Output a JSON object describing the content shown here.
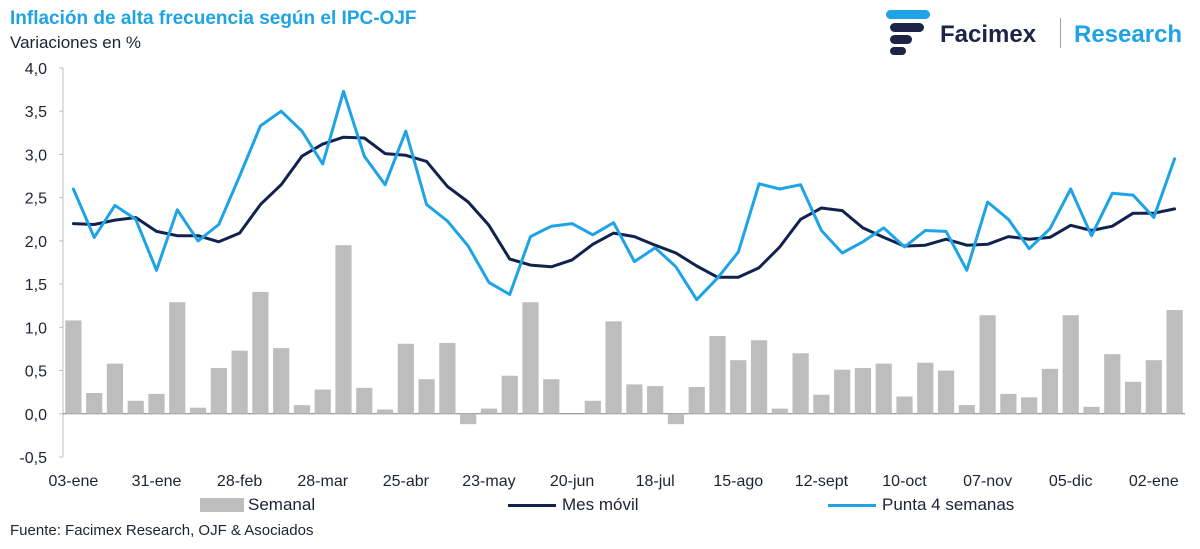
{
  "header": {
    "title": "Inflación de alta frecuencia según el IPC-OJF",
    "subtitle": "Variaciones en %"
  },
  "logo": {
    "name": "Facimex",
    "division": "Research"
  },
  "footer": {
    "source": "Fuente: Facimex Research, OJF & Asociados"
  },
  "colors": {
    "bar": "#bdbdbd",
    "mes_movil": "#12224f",
    "punta": "#1ea4e6"
  },
  "chart_data": {
    "type": "bar+line",
    "ylim": [
      -0.5,
      4.0
    ],
    "yticks": [
      -0.5,
      0.0,
      0.5,
      1.0,
      1.5,
      2.0,
      2.5,
      3.0,
      3.5,
      4.0
    ],
    "ytick_labels": [
      "-0,5",
      "0,0",
      "0,5",
      "1,0",
      "1,5",
      "2,0",
      "2,5",
      "3,0",
      "3,5",
      "4,0"
    ],
    "xtick_labels": [
      {
        "index": 0,
        "label": "03-ene"
      },
      {
        "index": 4,
        "label": "31-ene"
      },
      {
        "index": 8,
        "label": "28-feb"
      },
      {
        "index": 12,
        "label": "28-mar"
      },
      {
        "index": 16,
        "label": "25-abr"
      },
      {
        "index": 20,
        "label": "23-may"
      },
      {
        "index": 24,
        "label": "20-jun"
      },
      {
        "index": 28,
        "label": "18-jul"
      },
      {
        "index": 32,
        "label": "15-ago"
      },
      {
        "index": 36,
        "label": "12-sept"
      },
      {
        "index": 40,
        "label": "10-oct"
      },
      {
        "index": 44,
        "label": "07-nov"
      },
      {
        "index": 48,
        "label": "05-dic"
      },
      {
        "index": 52,
        "label": "02-ene"
      }
    ],
    "legend_position": "bottom",
    "series": [
      {
        "name": "Semanal",
        "type": "bar",
        "values": [
          1.08,
          0.24,
          0.58,
          0.15,
          0.23,
          1.29,
          0.07,
          0.53,
          0.73,
          1.41,
          0.76,
          0.1,
          0.28,
          1.95,
          0.3,
          0.05,
          0.81,
          0.4,
          0.82,
          -0.12,
          0.06,
          0.44,
          1.29,
          0.4,
          0.0,
          0.15,
          1.07,
          0.34,
          0.32,
          -0.12,
          0.31,
          0.9,
          0.62,
          0.85,
          0.06,
          0.7,
          0.22,
          0.51,
          0.53,
          0.58,
          0.2,
          0.59,
          0.5,
          0.1,
          1.14,
          0.23,
          0.19,
          0.52,
          1.14,
          0.08,
          0.69,
          0.37,
          0.62,
          1.2
        ]
      },
      {
        "name": "Mes móvil",
        "type": "line",
        "values": [
          2.2,
          2.19,
          2.24,
          2.27,
          2.11,
          2.06,
          2.06,
          1.99,
          2.09,
          2.42,
          2.65,
          2.98,
          3.12,
          3.2,
          3.19,
          3.01,
          2.99,
          2.92,
          2.63,
          2.45,
          2.18,
          1.79,
          1.72,
          1.7,
          1.78,
          1.96,
          2.09,
          2.05,
          1.95,
          1.86,
          1.71,
          1.58,
          1.58,
          1.69,
          1.93,
          2.25,
          2.38,
          2.35,
          2.15,
          2.04,
          1.94,
          1.95,
          2.02,
          1.95,
          1.96,
          2.05,
          2.02,
          2.04,
          2.18,
          2.12,
          2.17,
          2.32,
          2.32,
          2.37
        ]
      },
      {
        "name": "Punta 4 semanas",
        "type": "line",
        "values": [
          2.6,
          2.04,
          2.41,
          2.25,
          1.66,
          2.36,
          2.0,
          2.19,
          2.75,
          3.33,
          3.5,
          3.27,
          2.89,
          3.73,
          2.98,
          2.65,
          3.27,
          2.42,
          2.23,
          1.94,
          1.52,
          1.38,
          2.05,
          2.17,
          2.2,
          2.07,
          2.21,
          1.76,
          1.92,
          1.7,
          1.32,
          1.57,
          1.87,
          2.66,
          2.6,
          2.65,
          2.12,
          1.86,
          1.99,
          2.15,
          1.93,
          2.12,
          2.11,
          1.66,
          2.45,
          2.25,
          1.91,
          2.14,
          2.6,
          2.06,
          2.55,
          2.53,
          2.27,
          2.95
        ]
      }
    ]
  }
}
